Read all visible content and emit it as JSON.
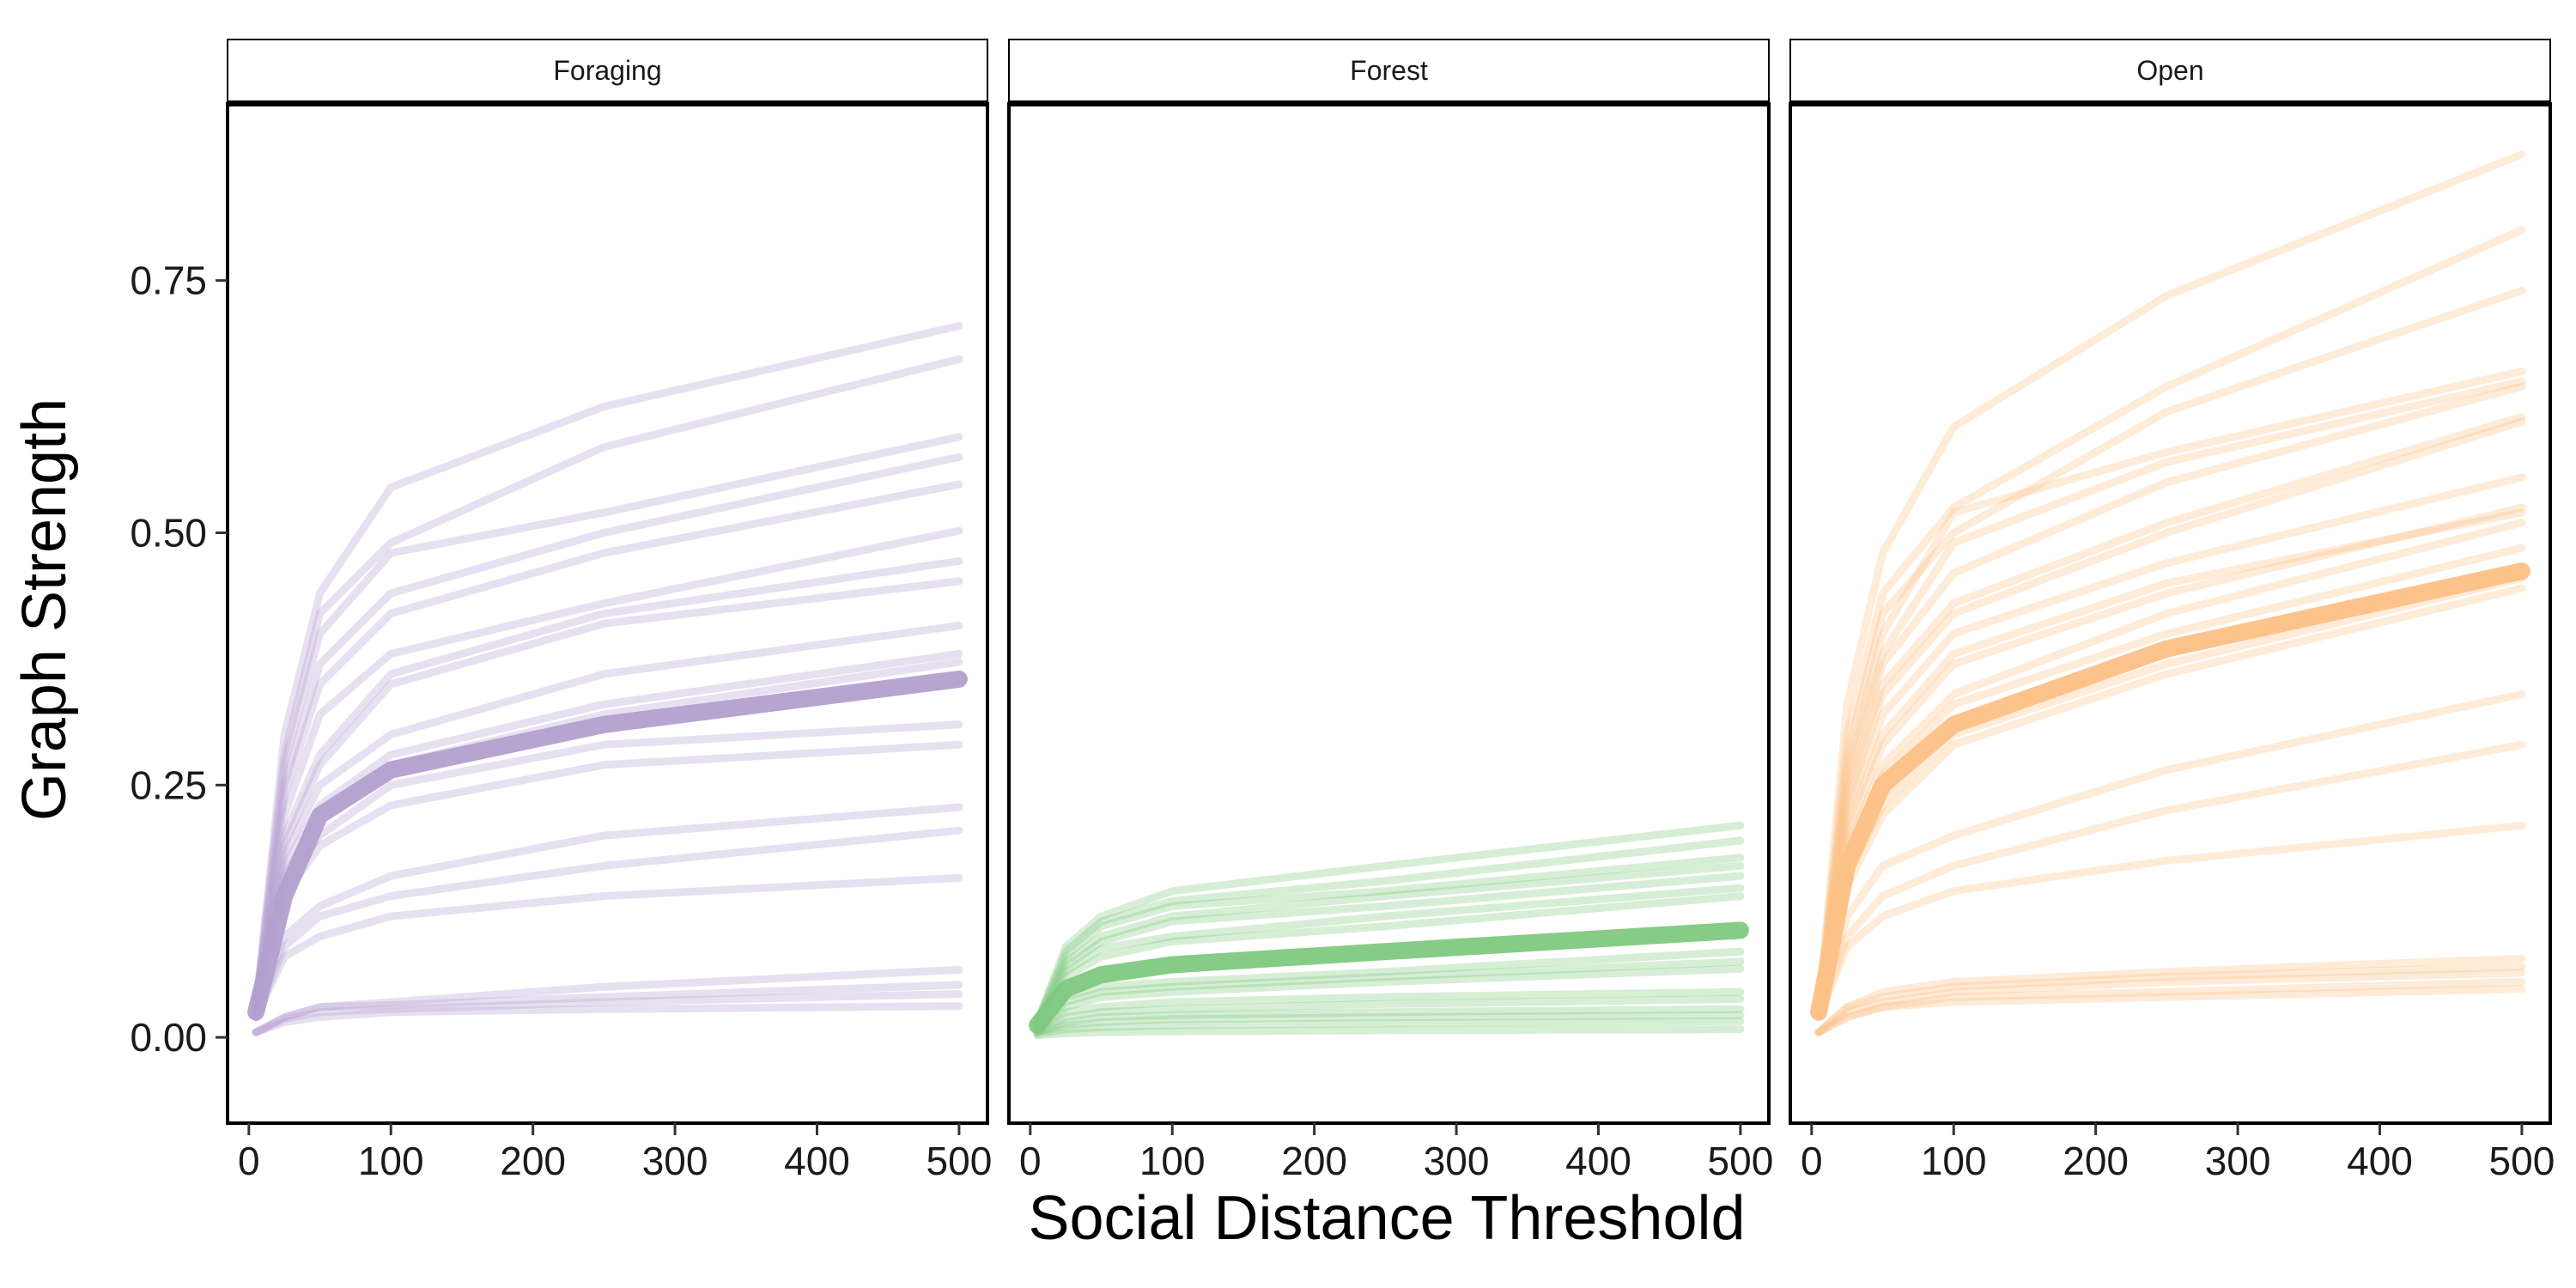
{
  "chart_data": {
    "type": "line",
    "xlabel": "Social Distance Threshold",
    "ylabel": "Graph Strength",
    "x": [
      5,
      25,
      50,
      100,
      250,
      500
    ],
    "xlim": [
      -15,
      520
    ],
    "ylim": [
      -0.085,
      0.925
    ],
    "x_ticks": [
      0,
      100,
      200,
      300,
      400,
      500
    ],
    "y_ticks": [
      0.0,
      0.25,
      0.5,
      0.75
    ],
    "x_tick_labels": [
      "0",
      "100",
      "200",
      "300",
      "400",
      "500"
    ],
    "y_tick_labels": [
      "0.00",
      "0.25",
      "0.50",
      "0.75"
    ],
    "grid": false,
    "legend": "none",
    "panels": [
      {
        "strip": "Foraging",
        "color": "#b39fcf",
        "mean": [
          0.025,
          0.14,
          0.22,
          0.265,
          0.31,
          0.355
        ],
        "series": [
          [
            0.03,
            0.3,
            0.44,
            0.545,
            0.625,
            0.705
          ],
          [
            0.03,
            0.28,
            0.42,
            0.49,
            0.585,
            0.672
          ],
          [
            0.03,
            0.27,
            0.4,
            0.48,
            0.52,
            0.595
          ],
          [
            0.03,
            0.25,
            0.37,
            0.44,
            0.5,
            0.575
          ],
          [
            0.03,
            0.24,
            0.35,
            0.42,
            0.48,
            0.548
          ],
          [
            0.03,
            0.22,
            0.32,
            0.38,
            0.43,
            0.502
          ],
          [
            0.03,
            0.2,
            0.28,
            0.36,
            0.42,
            0.472
          ],
          [
            0.03,
            0.19,
            0.27,
            0.35,
            0.41,
            0.452
          ],
          [
            0.03,
            0.18,
            0.25,
            0.3,
            0.36,
            0.408
          ],
          [
            0.03,
            0.17,
            0.23,
            0.28,
            0.33,
            0.38
          ],
          [
            0.03,
            0.16,
            0.22,
            0.27,
            0.32,
            0.372
          ],
          [
            0.03,
            0.15,
            0.2,
            0.25,
            0.29,
            0.31
          ],
          [
            0.03,
            0.14,
            0.19,
            0.23,
            0.27,
            0.29
          ],
          [
            0.02,
            0.1,
            0.13,
            0.16,
            0.2,
            0.228
          ],
          [
            0.02,
            0.09,
            0.12,
            0.14,
            0.17,
            0.205
          ],
          [
            0.02,
            0.08,
            0.1,
            0.12,
            0.14,
            0.158
          ],
          [
            0.005,
            0.02,
            0.03,
            0.035,
            0.05,
            0.067
          ],
          [
            0.005,
            0.02,
            0.03,
            0.032,
            0.04,
            0.052
          ],
          [
            0.005,
            0.018,
            0.025,
            0.028,
            0.035,
            0.043
          ],
          [
            0.005,
            0.015,
            0.02,
            0.025,
            0.028,
            0.031
          ]
        ]
      },
      {
        "strip": "Forest",
        "color": "#7fc97f",
        "mean": [
          0.012,
          0.048,
          0.062,
          0.072,
          0.085,
          0.106
        ],
        "series": [
          [
            0.015,
            0.09,
            0.12,
            0.145,
            0.17,
            0.21
          ],
          [
            0.015,
            0.085,
            0.115,
            0.135,
            0.155,
            0.195
          ],
          [
            0.015,
            0.08,
            0.11,
            0.13,
            0.145,
            0.178
          ],
          [
            0.015,
            0.075,
            0.1,
            0.12,
            0.14,
            0.17
          ],
          [
            0.015,
            0.07,
            0.095,
            0.115,
            0.13,
            0.16
          ],
          [
            0.012,
            0.065,
            0.088,
            0.1,
            0.12,
            0.148
          ],
          [
            0.012,
            0.06,
            0.08,
            0.095,
            0.11,
            0.14
          ],
          [
            0.01,
            0.04,
            0.05,
            0.055,
            0.065,
            0.085
          ],
          [
            0.01,
            0.035,
            0.045,
            0.05,
            0.06,
            0.075
          ],
          [
            0.008,
            0.03,
            0.04,
            0.045,
            0.055,
            0.068
          ],
          [
            0.008,
            0.025,
            0.03,
            0.035,
            0.04,
            0.045
          ],
          [
            0.005,
            0.02,
            0.025,
            0.028,
            0.033,
            0.038
          ],
          [
            0.005,
            0.015,
            0.02,
            0.022,
            0.025,
            0.028
          ],
          [
            0.005,
            0.012,
            0.015,
            0.018,
            0.02,
            0.022
          ],
          [
            0.003,
            0.008,
            0.01,
            0.012,
            0.014,
            0.016
          ],
          [
            0.002,
            0.004,
            0.005,
            0.006,
            0.007,
            0.008
          ]
        ]
      },
      {
        "strip": "Open",
        "color": "#fdc086",
        "mean": [
          0.025,
          0.17,
          0.25,
          0.31,
          0.385,
          0.462
        ],
        "series": [
          [
            0.03,
            0.33,
            0.48,
            0.605,
            0.735,
            0.875
          ],
          [
            0.03,
            0.3,
            0.44,
            0.525,
            0.645,
            0.8
          ],
          [
            0.03,
            0.28,
            0.42,
            0.5,
            0.62,
            0.74
          ],
          [
            0.03,
            0.27,
            0.4,
            0.52,
            0.58,
            0.66
          ],
          [
            0.03,
            0.26,
            0.38,
            0.49,
            0.57,
            0.65
          ],
          [
            0.03,
            0.25,
            0.37,
            0.46,
            0.55,
            0.645
          ],
          [
            0.03,
            0.24,
            0.35,
            0.43,
            0.51,
            0.615
          ],
          [
            0.03,
            0.23,
            0.34,
            0.42,
            0.5,
            0.61
          ],
          [
            0.03,
            0.22,
            0.32,
            0.4,
            0.47,
            0.555
          ],
          [
            0.03,
            0.21,
            0.3,
            0.38,
            0.45,
            0.52
          ],
          [
            0.03,
            0.2,
            0.29,
            0.37,
            0.44,
            0.525
          ],
          [
            0.03,
            0.19,
            0.27,
            0.34,
            0.42,
            0.51
          ],
          [
            0.03,
            0.18,
            0.26,
            0.33,
            0.4,
            0.485
          ],
          [
            0.03,
            0.17,
            0.24,
            0.31,
            0.38,
            0.465
          ],
          [
            0.03,
            0.16,
            0.23,
            0.3,
            0.37,
            0.455
          ],
          [
            0.03,
            0.15,
            0.22,
            0.29,
            0.36,
            0.445
          ],
          [
            0.025,
            0.12,
            0.17,
            0.2,
            0.265,
            0.34
          ],
          [
            0.02,
            0.1,
            0.14,
            0.17,
            0.225,
            0.29
          ],
          [
            0.02,
            0.09,
            0.12,
            0.145,
            0.175,
            0.21
          ],
          [
            0.005,
            0.03,
            0.045,
            0.055,
            0.065,
            0.078
          ],
          [
            0.005,
            0.03,
            0.04,
            0.05,
            0.06,
            0.07
          ],
          [
            0.005,
            0.025,
            0.035,
            0.045,
            0.055,
            0.064
          ],
          [
            0.005,
            0.02,
            0.03,
            0.04,
            0.045,
            0.055
          ],
          [
            0.005,
            0.02,
            0.03,
            0.035,
            0.04,
            0.048
          ]
        ]
      }
    ]
  }
}
